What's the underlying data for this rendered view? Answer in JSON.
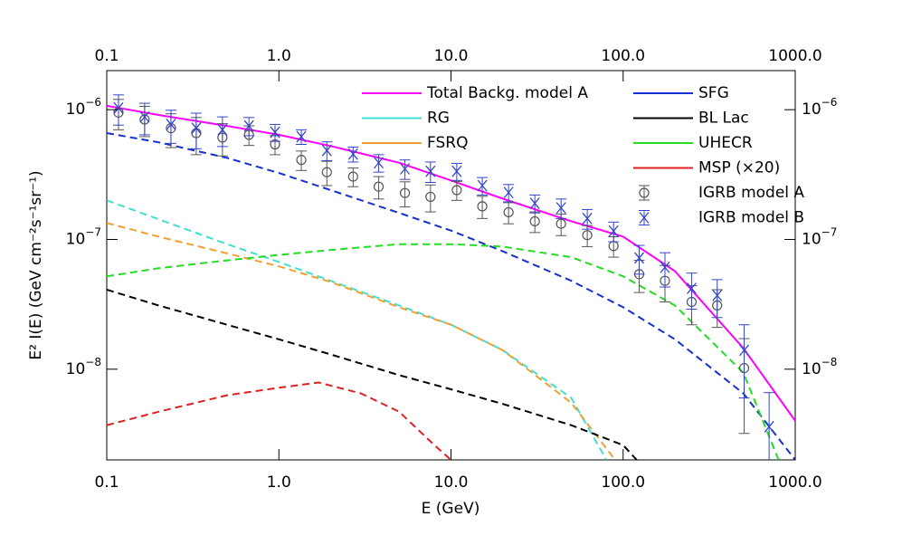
{
  "chart_data": {
    "type": "line",
    "xlabel": "E (GeV)",
    "ylabel": "E² I(E) (GeV cm⁻²s⁻¹sr⁻¹)",
    "xscale": "log",
    "yscale": "log",
    "xlim": [
      0.1,
      1000
    ],
    "ylim": [
      2e-09,
      2e-06
    ],
    "xticks": [
      {
        "value": 0.1,
        "label": "0.1"
      },
      {
        "value": 1,
        "label": "1.0"
      },
      {
        "value": 10,
        "label": "10.0"
      },
      {
        "value": 100,
        "label": "100.0"
      },
      {
        "value": 1000,
        "label": "1000.0"
      }
    ],
    "yticks": [
      {
        "value": 1e-08,
        "label": "10",
        "exponent": "−8"
      },
      {
        "value": 1e-07,
        "label": "10",
        "exponent": "−7"
      },
      {
        "value": 1e-06,
        "label": "10",
        "exponent": "−6"
      }
    ],
    "legend": "upper right",
    "series": [
      {
        "name": "Total Backg. model A",
        "color": "#ff00ff",
        "dashed": false,
        "x": [
          0.1,
          0.2,
          0.5,
          1,
          2,
          5,
          10,
          20,
          50,
          100,
          200,
          500,
          1000
        ],
        "values": [
          1.07e-06,
          9.1e-07,
          7.5e-07,
          6.4e-07,
          5.25e-07,
          3.9e-07,
          2.85e-07,
          2.06e-07,
          1.38e-07,
          1.05e-07,
          5.7e-08,
          1.45e-08,
          4e-09
        ]
      },
      {
        "name": "RG",
        "color": "#40e0d0",
        "dashed": true,
        "x": [
          0.1,
          0.2,
          0.5,
          1,
          2,
          5,
          10,
          20,
          50,
          80
        ],
        "values": [
          2e-07,
          1.43e-07,
          9.2e-08,
          6.7e-08,
          4.8e-08,
          3.1e-08,
          2.2e-08,
          1.4e-08,
          6e-09,
          2e-09
        ]
      },
      {
        "name": "FSRQ",
        "color": "#f0a030",
        "dashed": true,
        "x": [
          0.1,
          0.2,
          0.5,
          1,
          2,
          5,
          10,
          20,
          50,
          90
        ],
        "values": [
          1.34e-07,
          1.05e-07,
          7.8e-08,
          6.2e-08,
          4.7e-08,
          3e-08,
          2.2e-08,
          1.4e-08,
          5.5e-09,
          2e-09
        ]
      },
      {
        "name": "SFG",
        "color": "#1530d0",
        "dashed": true,
        "x": [
          0.1,
          0.2,
          0.5,
          1,
          2,
          5,
          10,
          20,
          50,
          100,
          200,
          500,
          1000
        ],
        "values": [
          6.6e-07,
          5.6e-07,
          4.25e-07,
          3.25e-07,
          2.4e-07,
          1.6e-07,
          1.17e-07,
          8.1e-08,
          4.8e-08,
          3e-08,
          1.7e-08,
          6.5e-09,
          2e-09
        ]
      },
      {
        "name": "BL Lac",
        "color": "#000000",
        "dashed": true,
        "x": [
          0.1,
          0.2,
          0.5,
          1,
          2,
          5,
          10,
          20,
          50,
          100,
          120
        ],
        "values": [
          4.1e-08,
          3.1e-08,
          2.2e-08,
          1.7e-08,
          1.3e-08,
          9e-09,
          7e-09,
          5.4e-09,
          3.7e-09,
          2.6e-09,
          2e-09
        ]
      },
      {
        "name": "UHECR",
        "color": "#22dd22",
        "dashed": true,
        "x": [
          0.1,
          0.2,
          0.5,
          1,
          2,
          5,
          10,
          20,
          50,
          100,
          200,
          500,
          800
        ],
        "values": [
          5.2e-08,
          6e-08,
          6.9e-08,
          7.6e-08,
          8.3e-08,
          9.2e-08,
          9.2e-08,
          8.8e-08,
          7.3e-08,
          5.2e-08,
          3.1e-08,
          9.4e-09,
          2e-09
        ]
      },
      {
        "name": "MSP (×20)",
        "color": "#e02020",
        "dashed": true,
        "x": [
          0.1,
          0.2,
          0.5,
          1,
          1.7,
          3,
          5,
          8,
          10
        ],
        "values": [
          3.7e-09,
          4.7e-09,
          6.3e-09,
          7.2e-09,
          7.9e-09,
          6.5e-09,
          4.7e-09,
          2.6e-09,
          2e-09
        ]
      },
      {
        "name": "IGRB model A",
        "color": "#555555",
        "marker": "circle",
        "x": [
          0.117,
          0.166,
          0.236,
          0.331,
          0.47,
          0.67,
          0.95,
          1.35,
          1.9,
          2.7,
          3.8,
          5.4,
          7.6,
          10.8,
          15.2,
          21.6,
          30.7,
          43.6,
          61.9,
          88,
          124,
          175,
          250,
          352,
          505
        ],
        "values": [
          9.5e-07,
          8.4e-07,
          7.2e-07,
          6.6e-07,
          6.1e-07,
          6.4e-07,
          5.4e-07,
          4.1e-07,
          3.3e-07,
          3.05e-07,
          2.55e-07,
          2.28e-07,
          2.13e-07,
          2.4e-07,
          1.8e-07,
          1.62e-07,
          1.38e-07,
          1.32e-07,
          1.08e-07,
          8.9e-08,
          5.4e-08,
          4.8e-08,
          3.3e-08,
          3.1e-08,
          1.02e-08
        ],
        "errors": [
          2.5e-07,
          2.2e-07,
          2.1e-07,
          2.1e-07,
          1.7e-07,
          1.1e-07,
          9e-08,
          7e-08,
          7e-08,
          5e-08,
          5e-08,
          5e-08,
          5e-08,
          4e-08,
          3.5e-08,
          3e-08,
          2.5e-08,
          2.5e-08,
          2e-08,
          1.6e-08,
          1.5e-08,
          1.5e-08,
          1.1e-08,
          1e-08,
          7e-09
        ]
      },
      {
        "name": "IGRB model B",
        "color": "#3344cc",
        "marker": "x",
        "x": [
          0.117,
          0.166,
          0.236,
          0.331,
          0.47,
          0.67,
          0.95,
          1.35,
          1.9,
          2.7,
          3.8,
          5.4,
          7.6,
          10.8,
          15.2,
          21.6,
          30.7,
          43.6,
          61.9,
          88,
          124,
          175,
          250,
          352,
          505,
          705
        ],
        "values": [
          1.03e-06,
          8.8e-07,
          7.7e-07,
          7.2e-07,
          7e-07,
          7.5e-07,
          6.7e-07,
          6.2e-07,
          4.85e-07,
          4.55e-07,
          3.9e-07,
          3.5e-07,
          3.35e-07,
          3.35e-07,
          2.6e-07,
          2.3e-07,
          1.9e-07,
          1.75e-07,
          1.45e-07,
          1.16e-07,
          7.2e-08,
          6.1e-08,
          4.2e-08,
          3.7e-08,
          1.4e-08,
          3.6e-09
        ],
        "errors": [
          2.7e-07,
          2.4e-07,
          2.2e-07,
          2.2e-07,
          1.8e-07,
          1.2e-07,
          1e-07,
          8e-08,
          8e-08,
          6e-08,
          6e-08,
          6e-08,
          6e-08,
          5e-08,
          4e-08,
          3.5e-08,
          3e-08,
          3e-08,
          2.5e-08,
          2e-08,
          1.8e-08,
          1.8e-08,
          1.3e-08,
          1.2e-08,
          8e-09,
          3e-09
        ]
      }
    ]
  }
}
